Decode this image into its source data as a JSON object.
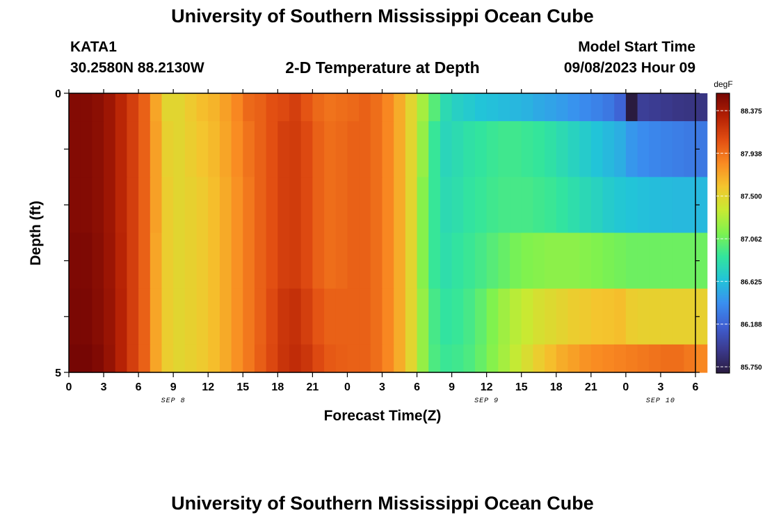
{
  "page": {
    "title": "University of Southern Mississippi Ocean Cube",
    "footer_title": "University of Southern Mississippi Ocean Cube",
    "station": "KATA1",
    "coords": "30.2580N  88.2130W",
    "subtitle": "2-D Temperature at Depth",
    "model_start_label": "Model Start Time",
    "model_start_value": "09/08/2023 Hour 09"
  },
  "chart_data": {
    "type": "heatmap",
    "title": "2-D Temperature at Depth",
    "xlabel": "Forecast Time(Z)",
    "ylabel": "Depth (ft)",
    "x_tick_labels": [
      "0",
      "3",
      "6",
      "9",
      "12",
      "15",
      "18",
      "21",
      "0",
      "3",
      "6",
      "9",
      "12",
      "15",
      "18",
      "21",
      "0",
      "3",
      "6"
    ],
    "date_labels": [
      {
        "text": "SEP 8",
        "at_tick": 3
      },
      {
        "text": "SEP 9",
        "at_tick": 12
      },
      {
        "text": "SEP 10",
        "at_tick": 17
      }
    ],
    "y_tick_labels": [
      {
        "text": "0",
        "depth": 0
      },
      {
        "text": "5",
        "depth": 5
      }
    ],
    "ylim": [
      0,
      5
    ],
    "x_hours": 54,
    "depth_layers": 5,
    "colorbar": {
      "unit": "degF",
      "min": 85.75,
      "max": 88.6,
      "tick_values": [
        88.375,
        87.938,
        87.5,
        87.062,
        86.625,
        86.188,
        85.75
      ],
      "tick_labels": [
        "88.375",
        "87.938",
        "87.500",
        "87.062",
        "86.625",
        "86.188",
        "85.750"
      ]
    },
    "colormap": [
      "#2a1b3f",
      "#3b3a8e",
      "#3f5fd2",
      "#3a8ff0",
      "#22c4d8",
      "#33e59c",
      "#7ef24f",
      "#c8ea32",
      "#f4c52e",
      "#f98a22",
      "#e24e12",
      "#b42004",
      "#760604"
    ],
    "temperature_series": [
      {
        "depth_range": [
          0,
          0.5
        ],
        "values": [
          88.55,
          88.55,
          88.52,
          88.45,
          88.33,
          88.2,
          88.05,
          87.78,
          87.55,
          87.55,
          87.62,
          87.68,
          87.72,
          87.8,
          87.9,
          88.02,
          88.05,
          88.12,
          88.15,
          88.2,
          88.1,
          88.02,
          87.98,
          88.0,
          88.02,
          88.05,
          88.0,
          87.9,
          87.75,
          87.55,
          87.3,
          87.05,
          86.85,
          86.78,
          86.74,
          86.7,
          86.68,
          86.66,
          86.64,
          86.62,
          86.58,
          86.55,
          86.52,
          86.48,
          86.44,
          86.4,
          86.35,
          86.25,
          85.72,
          86.02,
          86.0,
          85.98,
          85.96,
          85.95,
          85.95
        ]
      },
      {
        "depth_range": [
          0.5,
          1.5
        ],
        "values": [
          88.55,
          88.55,
          88.52,
          88.45,
          88.33,
          88.2,
          88.05,
          87.8,
          87.58,
          87.55,
          87.6,
          87.65,
          87.7,
          87.78,
          87.88,
          87.98,
          88.05,
          88.12,
          88.2,
          88.22,
          88.15,
          88.05,
          88.0,
          88.02,
          88.05,
          88.05,
          88.0,
          87.9,
          87.75,
          87.55,
          87.25,
          86.95,
          86.82,
          86.86,
          86.9,
          86.93,
          86.96,
          86.98,
          86.98,
          86.96,
          86.94,
          86.9,
          86.85,
          86.8,
          86.75,
          86.7,
          86.65,
          86.6,
          86.5,
          86.45,
          86.42,
          86.4,
          86.38,
          86.36,
          86.35
        ]
      },
      {
        "depth_range": [
          1.5,
          2.5
        ],
        "values": [
          88.55,
          88.55,
          88.52,
          88.45,
          88.33,
          88.2,
          88.05,
          87.8,
          87.6,
          87.55,
          87.58,
          87.62,
          87.68,
          87.76,
          87.86,
          87.96,
          88.05,
          88.12,
          88.2,
          88.22,
          88.15,
          88.05,
          88.0,
          88.02,
          88.05,
          88.05,
          88.0,
          87.9,
          87.75,
          87.55,
          87.2,
          86.95,
          86.85,
          86.88,
          86.92,
          86.95,
          86.98,
          87.0,
          87.0,
          87.0,
          86.98,
          86.96,
          86.92,
          86.88,
          86.84,
          86.8,
          86.75,
          86.72,
          86.7,
          86.68,
          86.67,
          86.66,
          86.65,
          86.65,
          86.65
        ]
      },
      {
        "depth_range": [
          2.5,
          3.5
        ],
        "values": [
          88.57,
          88.57,
          88.53,
          88.46,
          88.34,
          88.2,
          88.05,
          87.78,
          87.6,
          87.55,
          87.58,
          87.62,
          87.68,
          87.76,
          87.86,
          87.96,
          88.05,
          88.12,
          88.2,
          88.22,
          88.15,
          88.05,
          88.0,
          88.02,
          88.05,
          88.05,
          88.0,
          87.9,
          87.75,
          87.55,
          87.2,
          86.95,
          86.88,
          86.92,
          86.96,
          87.0,
          87.05,
          87.1,
          87.15,
          87.18,
          87.2,
          87.22,
          87.22,
          87.22,
          87.2,
          87.18,
          87.16,
          87.14,
          87.12,
          87.12,
          87.12,
          87.12,
          87.12,
          87.12,
          87.12
        ]
      },
      {
        "depth_range": [
          3.5,
          4.5
        ],
        "values": [
          88.58,
          88.58,
          88.54,
          88.47,
          88.35,
          88.2,
          88.05,
          87.78,
          87.6,
          87.55,
          87.58,
          87.62,
          87.68,
          87.76,
          87.86,
          87.96,
          88.05,
          88.15,
          88.25,
          88.28,
          88.2,
          88.1,
          88.05,
          88.05,
          88.05,
          88.05,
          88.0,
          87.9,
          87.75,
          87.55,
          87.25,
          87.0,
          86.92,
          86.95,
          87.0,
          87.08,
          87.18,
          87.28,
          87.36,
          87.42,
          87.48,
          87.52,
          87.56,
          87.6,
          87.62,
          87.65,
          87.66,
          87.68,
          87.6,
          87.58,
          87.58,
          87.58,
          87.58,
          87.58,
          87.58
        ]
      },
      {
        "depth_range": [
          4.5,
          5
        ],
        "values": [
          88.6,
          88.6,
          88.56,
          88.48,
          88.35,
          88.2,
          88.05,
          87.78,
          87.6,
          87.55,
          87.58,
          87.62,
          87.68,
          87.76,
          87.86,
          87.96,
          88.06,
          88.16,
          88.26,
          88.3,
          88.25,
          88.15,
          88.08,
          88.06,
          88.05,
          88.05,
          88.0,
          87.9,
          87.75,
          87.55,
          87.25,
          87.02,
          86.96,
          86.98,
          87.02,
          87.1,
          87.2,
          87.3,
          87.4,
          87.5,
          87.6,
          87.68,
          87.75,
          87.8,
          87.85,
          87.88,
          87.9,
          87.92,
          87.94,
          87.96,
          87.98,
          88.0,
          88.0,
          87.96,
          87.9
        ]
      }
    ]
  }
}
